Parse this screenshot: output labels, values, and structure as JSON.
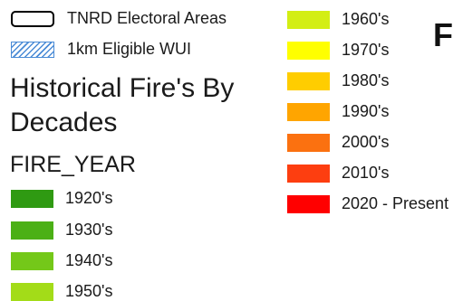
{
  "legend": {
    "top_items": [
      {
        "label": "TNRD Electoral Areas",
        "symbol": "boundary-outline"
      },
      {
        "label": "1km Eligible WUI",
        "symbol": "blue-hatch"
      }
    ],
    "title_line1": "Historical Fire's By",
    "title_line2": "Decades",
    "field_name": "FIRE_YEAR",
    "decades": [
      {
        "label": "1920's",
        "color": "#2f9a12"
      },
      {
        "label": "1930's",
        "color": "#4bb016"
      },
      {
        "label": "1940's",
        "color": "#74c819"
      },
      {
        "label": "1950's",
        "color": "#a3dc18"
      },
      {
        "label": "1960's",
        "color": "#d3ee14"
      },
      {
        "label": "1970's",
        "color": "#ffff00"
      },
      {
        "label": "1980's",
        "color": "#ffcd00"
      },
      {
        "label": "1990's",
        "color": "#ffa500"
      },
      {
        "label": "2000's",
        "color": "#fb7110"
      },
      {
        "label": "2010's",
        "color": "#fd3e10"
      },
      {
        "label": "2020 - Present",
        "color": "#ff0000"
      }
    ]
  },
  "cutoff_title": "F"
}
